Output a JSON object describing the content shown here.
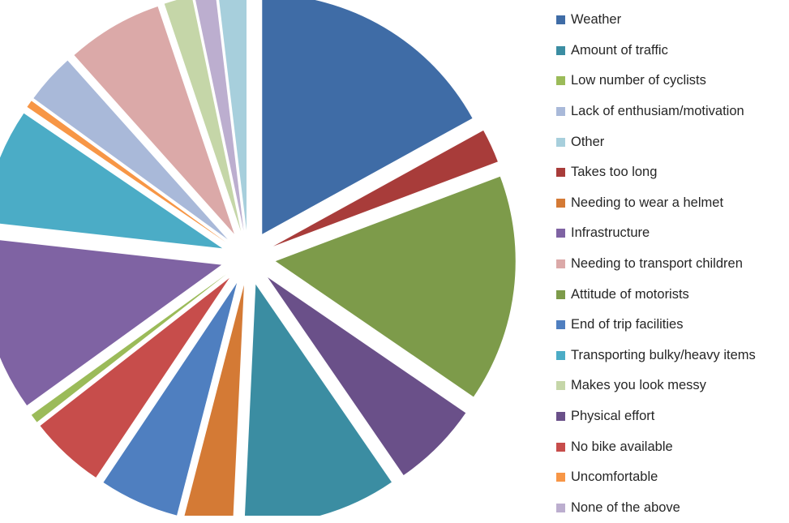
{
  "chart_data": {
    "type": "pie",
    "exploded": true,
    "start_angle_deg": 0,
    "direction": "clockwise",
    "slices": [
      {
        "label": "Weather",
        "value": 17.1,
        "color": "#3f6ca6"
      },
      {
        "label": "Takes too long",
        "value": 2.3,
        "color": "#a83c3a"
      },
      {
        "label": "Attitude of motorists",
        "value": 15.4,
        "color": "#7d9b4a"
      },
      {
        "label": "Physical effort",
        "value": 5.9,
        "color": "#6a5089"
      },
      {
        "label": "Amount of traffic",
        "value": 10.4,
        "color": "#3b8da2"
      },
      {
        "label": "Needing to wear a helmet",
        "value": 3.3,
        "color": "#d47a35"
      },
      {
        "label": "End of trip facilities",
        "value": 5.4,
        "color": "#4f7fc0"
      },
      {
        "label": "No bike available",
        "value": 5.1,
        "color": "#c74d4b"
      },
      {
        "label": "Low number of cyclists",
        "value": 0.6,
        "color": "#9bbb59"
      },
      {
        "label": "Infrastructure",
        "value": 11.8,
        "color": "#7f63a3"
      },
      {
        "label": "Transporting bulky/heavy items",
        "value": 7.8,
        "color": "#4bacc6"
      },
      {
        "label": "Uncomfortable",
        "value": 0.5,
        "color": "#f79646"
      },
      {
        "label": "Lack of enthusiam/motivation",
        "value": 3.4,
        "color": "#a9b9d9"
      },
      {
        "label": "Needing to transport children",
        "value": 6.5,
        "color": "#dba9a8"
      },
      {
        "label": "Makes you look messy",
        "value": 1.9,
        "color": "#c5d6a8"
      },
      {
        "label": "None of the above",
        "value": 1.4,
        "color": "#bcaecf"
      },
      {
        "label": "Other",
        "value": 1.9,
        "color": "#a7cfdc"
      }
    ],
    "legend": {
      "position": "right",
      "items": [
        {
          "label": "Weather",
          "color": "#3f6ca6"
        },
        {
          "label": "Amount of traffic",
          "color": "#3b8da2"
        },
        {
          "label": "Low number of cyclists",
          "color": "#9bbb59"
        },
        {
          "label": "Lack of enthusiam/motivation",
          "color": "#a9b9d9"
        },
        {
          "label": "Other",
          "color": "#a7cfdc"
        },
        {
          "label": "Takes too long",
          "color": "#a83c3a"
        },
        {
          "label": "Needing to wear a helmet",
          "color": "#d47a35"
        },
        {
          "label": "Infrastructure",
          "color": "#7f63a3"
        },
        {
          "label": "Needing to transport children",
          "color": "#dba9a8"
        },
        {
          "label": "Attitude of motorists",
          "color": "#7d9b4a"
        },
        {
          "label": "End of trip facilities",
          "color": "#4f7fc0"
        },
        {
          "label": "Transporting bulky/heavy items",
          "color": "#4bacc6"
        },
        {
          "label": "Makes you look messy",
          "color": "#c5d6a8"
        },
        {
          "label": "Physical effort",
          "color": "#6a5089"
        },
        {
          "label": "No bike available",
          "color": "#c74d4b"
        },
        {
          "label": "Uncomfortable",
          "color": "#f79646"
        },
        {
          "label": "None of the above",
          "color": "#bcaecf"
        }
      ]
    }
  }
}
